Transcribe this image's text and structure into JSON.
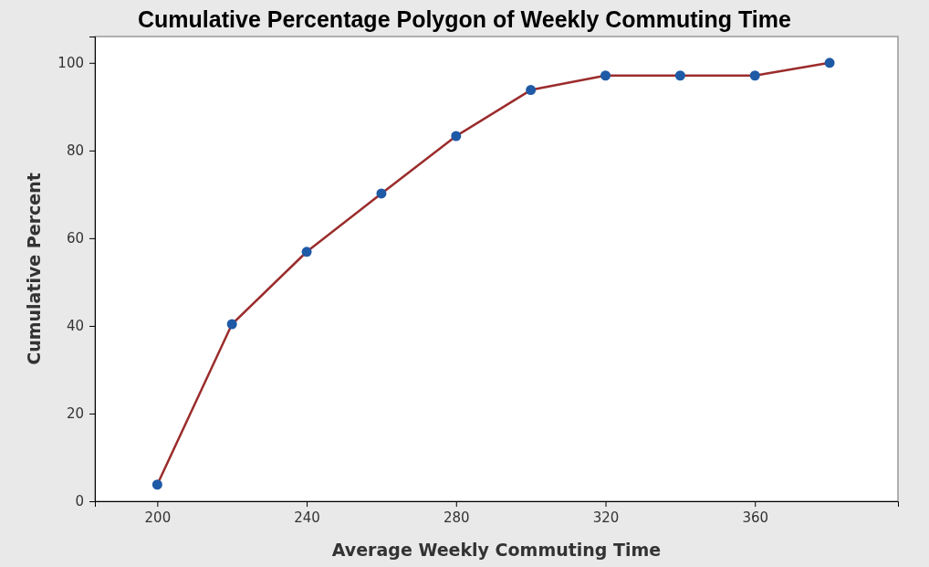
{
  "chart_data": {
    "type": "line",
    "title": "Cumulative Percentage Polygon of Weekly Commuting Time",
    "xlabel": "Average Weekly Commuting Time",
    "ylabel": "Cumulative Percent",
    "x": [
      200,
      220,
      240,
      260,
      280,
      300,
      320,
      340,
      360,
      380
    ],
    "series": [
      {
        "color": "#9b2c2c",
        "colors": [
          "#1f5aa6",
          "#1f5aa6",
          "#1f5aa6",
          "#1f5aa6",
          "#1f5aa6",
          "#1f5aa6",
          "#1f5aa6",
          "#1f5aa6",
          "#1f5aa6",
          "#1f5aa6"
        ],
        "values": [
          3.8,
          40.4,
          56.9,
          70.2,
          83.3,
          93.8,
          97.1,
          97.1,
          97.1,
          100
        ]
      }
    ],
    "marker": "circle",
    "line_style": "solid",
    "xlim": [
      183.3,
      398.3
    ],
    "xticks": [
      200,
      240,
      280,
      320,
      360
    ],
    "ylim": [
      0,
      106
    ],
    "yticks": [
      0,
      20,
      40,
      60,
      80,
      100
    ],
    "grid": false
  }
}
